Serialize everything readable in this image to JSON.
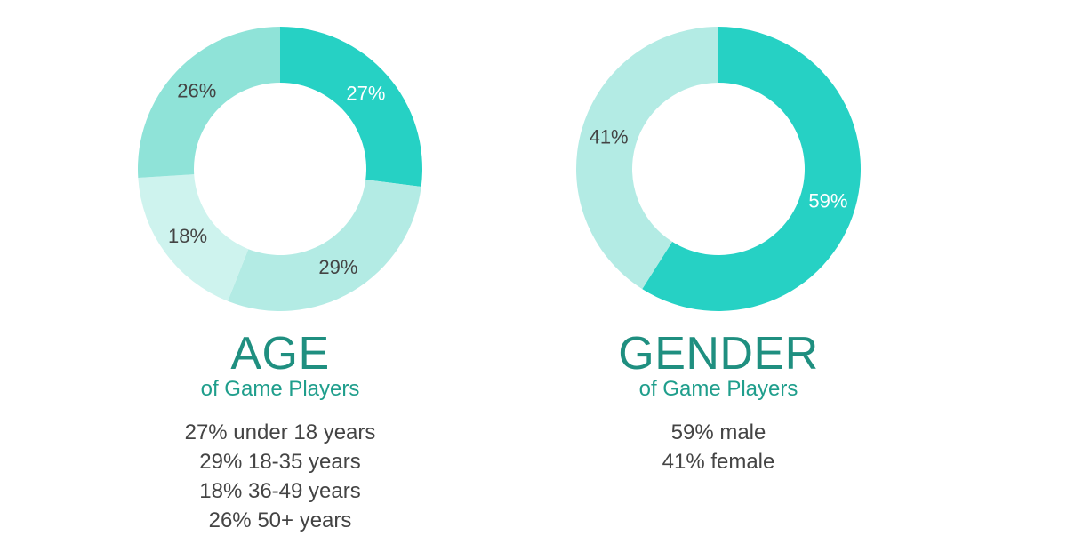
{
  "chart_data": [
    {
      "type": "pie",
      "title": "AGE",
      "subtitle": "of Game Players",
      "slices": [
        {
          "label": "27%",
          "value": 27,
          "color": "#26d1c4",
          "text_color": "#ffffff"
        },
        {
          "label": "29%",
          "value": 29,
          "color": "#b3ebe4",
          "text_color": "#444444"
        },
        {
          "label": "18%",
          "value": 18,
          "color": "#cef3ee",
          "text_color": "#444444"
        },
        {
          "label": "26%",
          "value": 26,
          "color": "#8fe3d8",
          "text_color": "#444444"
        }
      ],
      "legend": [
        "27% under 18 years",
        "29% 18-35 years",
        "18% 36-49 years",
        "26% 50+ years"
      ]
    },
    {
      "type": "pie",
      "title": "GENDER",
      "subtitle": "of Game Players",
      "slices": [
        {
          "label": "59%",
          "value": 59,
          "color": "#26d1c4",
          "text_color": "#ffffff"
        },
        {
          "label": "41%",
          "value": 41,
          "color": "#b3ebe4",
          "text_color": "#444444"
        }
      ],
      "legend": [
        "59% male",
        "41% female"
      ]
    }
  ]
}
